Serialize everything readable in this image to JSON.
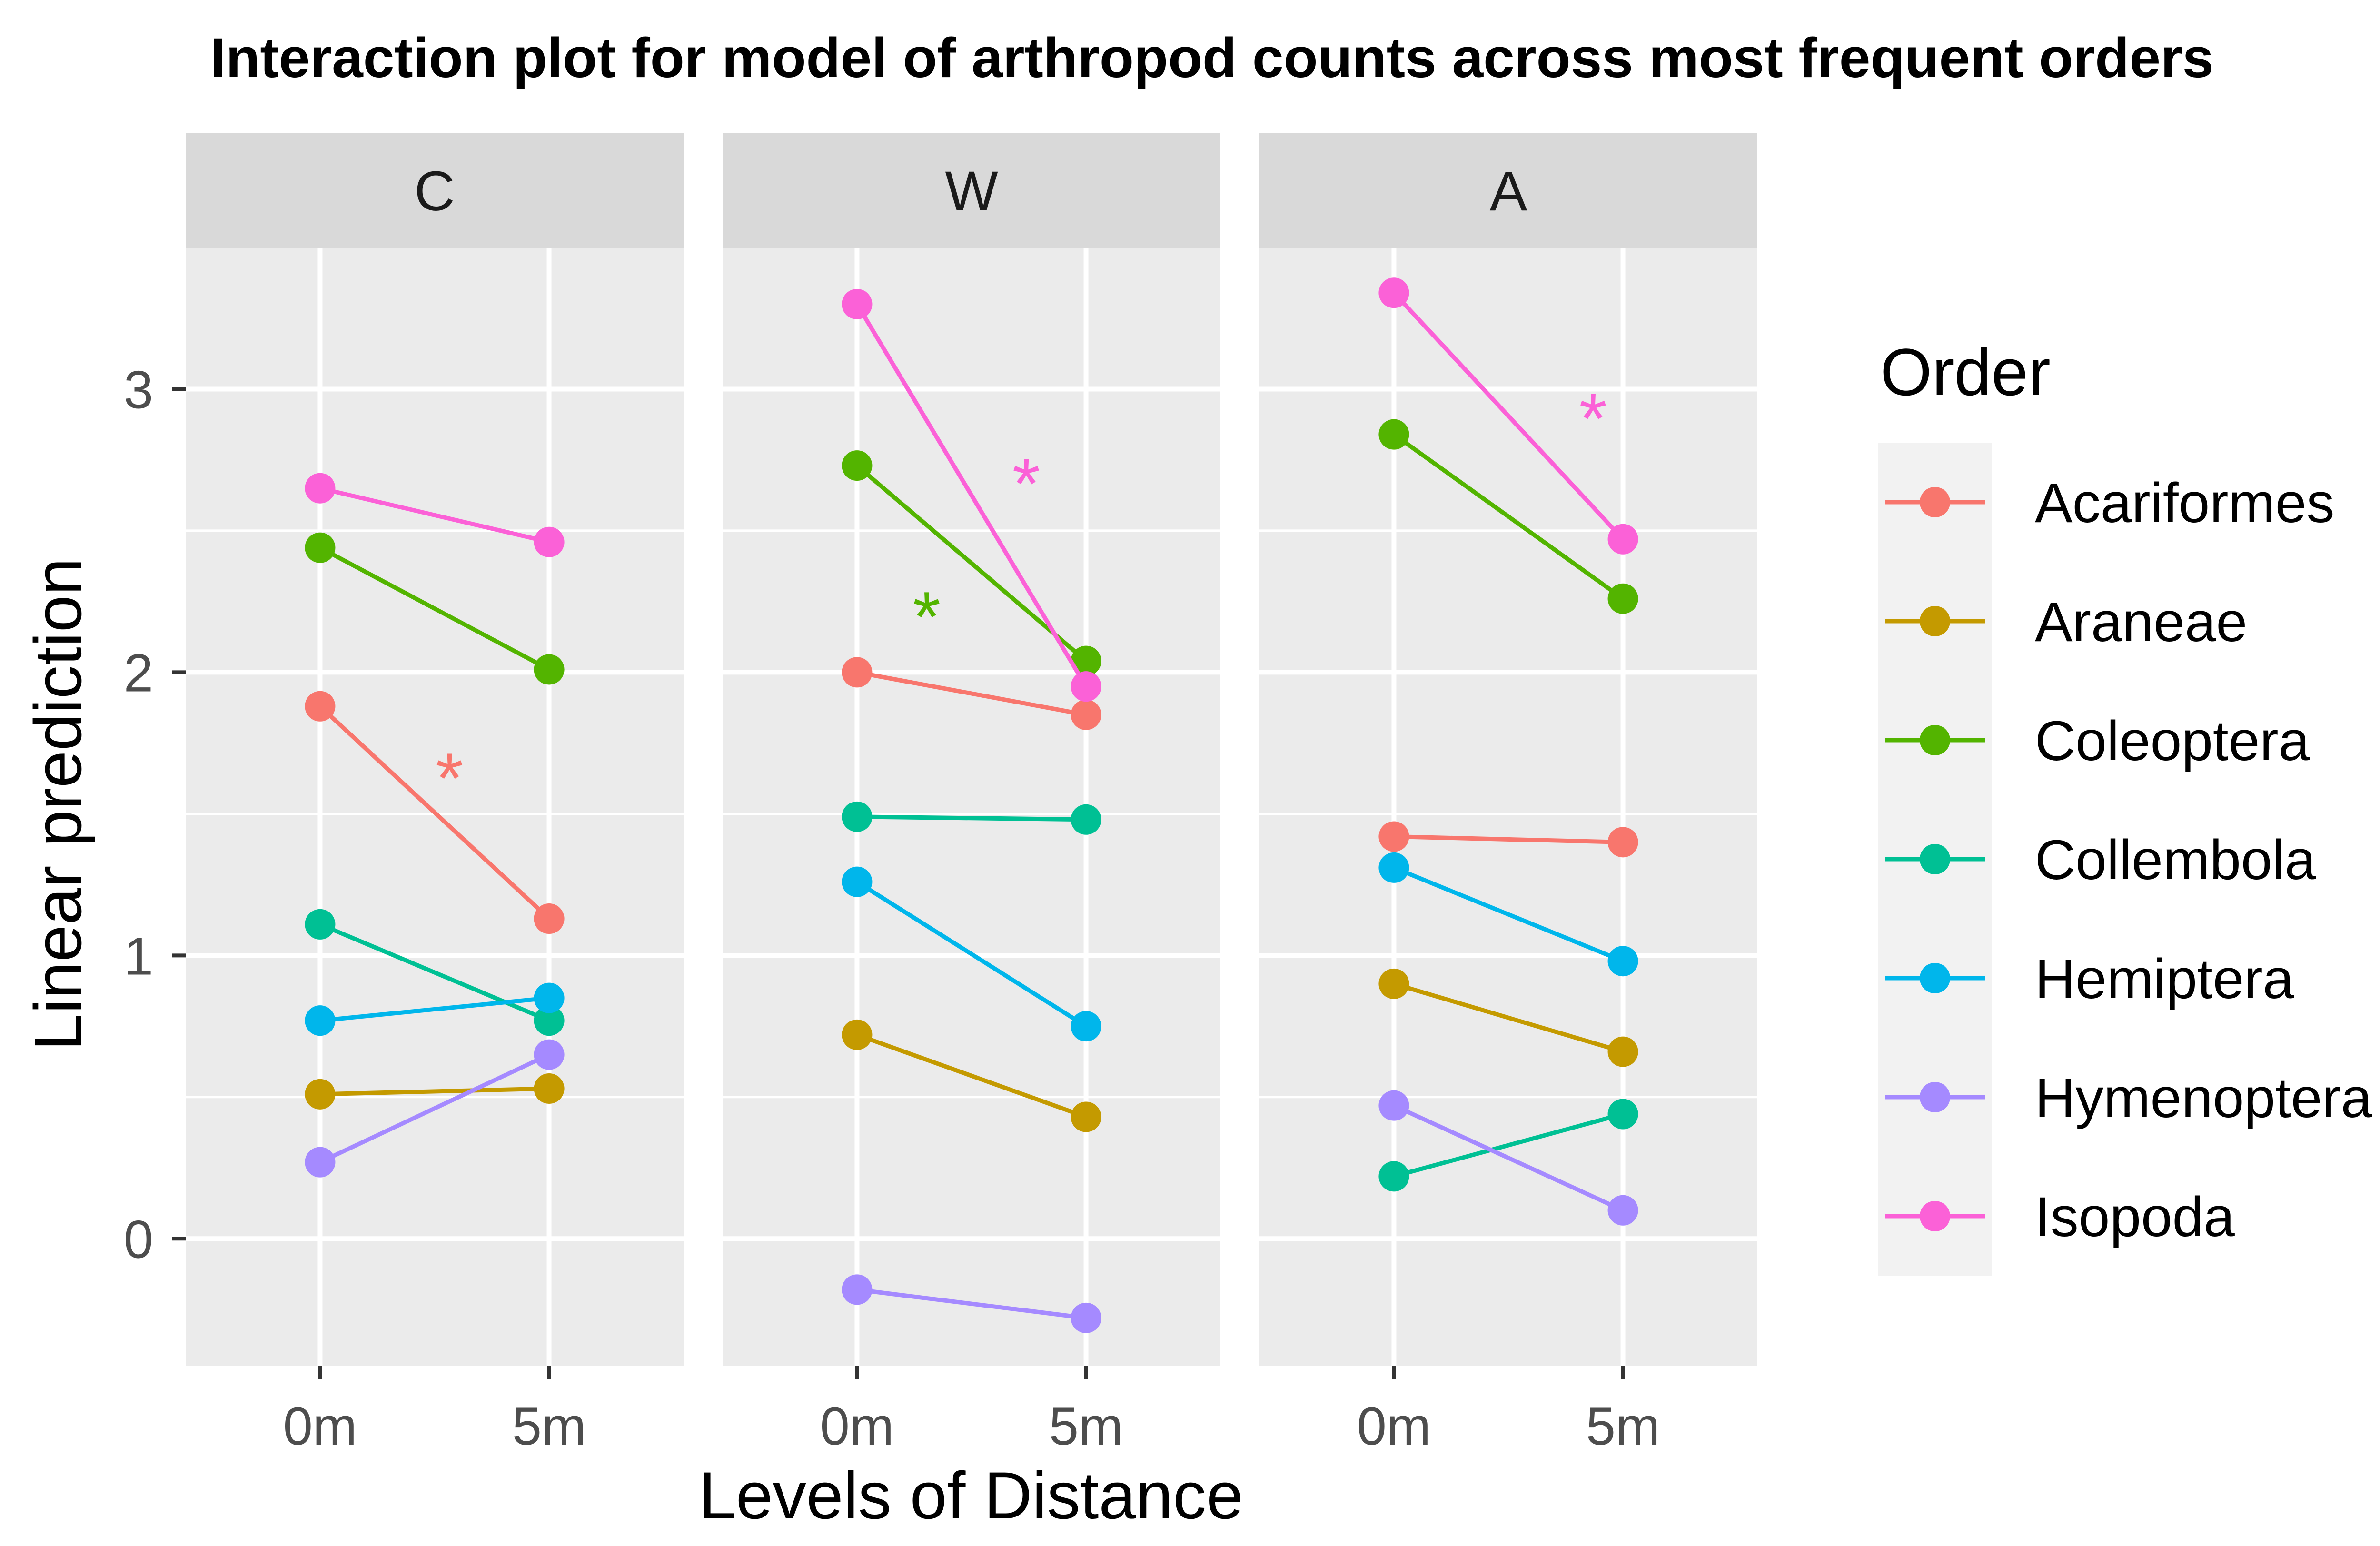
{
  "chart_data": {
    "type": "line",
    "title": "Interaction plot for model of arthropod counts across most frequent orders",
    "xlabel": "Levels of Distance",
    "ylabel": "Linear prediction",
    "x_categories": [
      "0m",
      "5m"
    ],
    "y_ticks": [
      0,
      1,
      2,
      3
    ],
    "ylim": [
      -0.45,
      3.5
    ],
    "grid": true,
    "legend": {
      "title": "Order",
      "position": "right"
    },
    "panels": [
      {
        "name": "C",
        "series": [
          {
            "name": "Acariformes",
            "values": [
              1.88,
              1.13
            ]
          },
          {
            "name": "Araneae",
            "values": [
              0.51,
              0.53
            ]
          },
          {
            "name": "Coleoptera",
            "values": [
              2.44,
              2.01
            ]
          },
          {
            "name": "Collembola",
            "values": [
              1.11,
              0.77
            ]
          },
          {
            "name": "Hemiptera",
            "values": [
              0.77,
              0.85
            ]
          },
          {
            "name": "Hymenoptera",
            "values": [
              0.27,
              0.65
            ]
          },
          {
            "name": "Isopoda",
            "values": [
              2.65,
              2.46
            ]
          }
        ],
        "annotations": [
          {
            "text": "*",
            "series": "Acariformes",
            "x": 0.53,
            "y": 1.66
          }
        ]
      },
      {
        "name": "W",
        "series": [
          {
            "name": "Acariformes",
            "values": [
              2.0,
              1.85
            ]
          },
          {
            "name": "Araneae",
            "values": [
              0.72,
              0.43
            ]
          },
          {
            "name": "Coleoptera",
            "values": [
              2.73,
              2.04
            ]
          },
          {
            "name": "Collembola",
            "values": [
              1.49,
              1.48
            ]
          },
          {
            "name": "Hemiptera",
            "values": [
              1.26,
              0.75
            ]
          },
          {
            "name": "Hymenoptera",
            "values": [
              -0.18,
              -0.28
            ]
          },
          {
            "name": "Isopoda",
            "values": [
              3.3,
              1.95
            ]
          }
        ],
        "annotations": [
          {
            "text": "*",
            "series": "Isopoda",
            "x": 0.61,
            "y": 2.7
          },
          {
            "text": "*",
            "series": "Coleoptera",
            "x": 0.41,
            "y": 2.23
          }
        ]
      },
      {
        "name": "A",
        "series": [
          {
            "name": "Acariformes",
            "values": [
              1.42,
              1.4
            ]
          },
          {
            "name": "Araneae",
            "values": [
              0.9,
              0.66
            ]
          },
          {
            "name": "Coleoptera",
            "values": [
              2.84,
              2.26
            ]
          },
          {
            "name": "Collembola",
            "values": [
              0.22,
              0.44
            ]
          },
          {
            "name": "Hemiptera",
            "values": [
              1.31,
              0.98
            ]
          },
          {
            "name": "Hymenoptera",
            "values": [
              0.47,
              0.1
            ]
          },
          {
            "name": "Isopoda",
            "values": [
              3.34,
              2.47
            ]
          }
        ],
        "annotations": [
          {
            "text": "*",
            "series": "Isopoda",
            "x": 0.67,
            "y": 2.93
          }
        ]
      }
    ],
    "order_colors": {
      "Acariformes": "#F8766D",
      "Araneae": "#C49A00",
      "Coleoptera": "#53B400",
      "Collembola": "#00C094",
      "Hemiptera": "#00B6EB",
      "Hymenoptera": "#A58AFF",
      "Isopoda": "#FB61D7"
    }
  }
}
